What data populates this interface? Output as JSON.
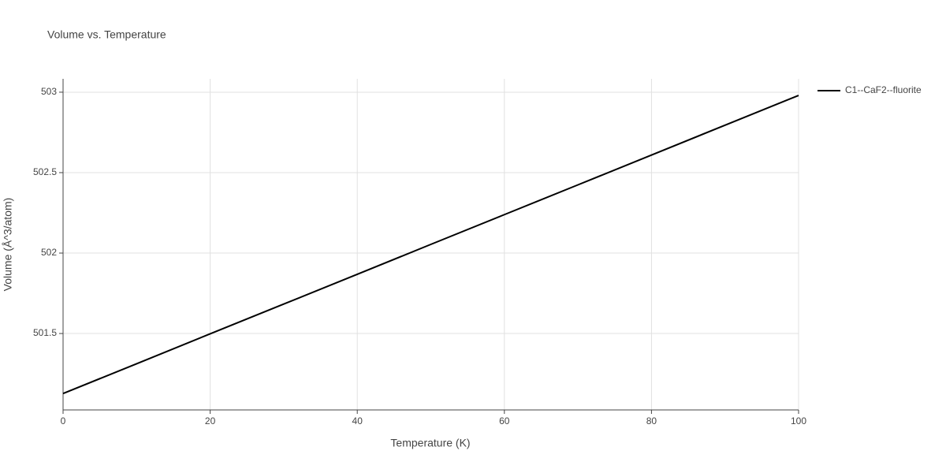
{
  "chart_data": {
    "type": "line",
    "title": "Volume vs. Temperature",
    "x_label": "Temperature (K)",
    "y_label": "Volume (Å^3/atom)",
    "x": [
      0,
      10,
      20,
      30,
      40,
      50,
      60,
      70,
      80,
      90,
      100
    ],
    "series": [
      {
        "name": "C1--CaF2--fluorite",
        "color": "#000000",
        "values": [
          501.127,
          501.312,
          501.498,
          501.683,
          501.868,
          502.054,
          502.239,
          502.424,
          502.609,
          502.795,
          502.98
        ]
      }
    ],
    "xlim": [
      0,
      100
    ],
    "xticks": [
      0,
      20,
      40,
      60,
      80,
      100
    ],
    "ylim": [
      501.025,
      503.083
    ],
    "yticks": [
      {
        "value": 501.5,
        "label": "501.5"
      },
      502,
      {
        "value": 502.5,
        "label": "502.5"
      },
      503
    ],
    "grid": true,
    "legend": "right"
  }
}
